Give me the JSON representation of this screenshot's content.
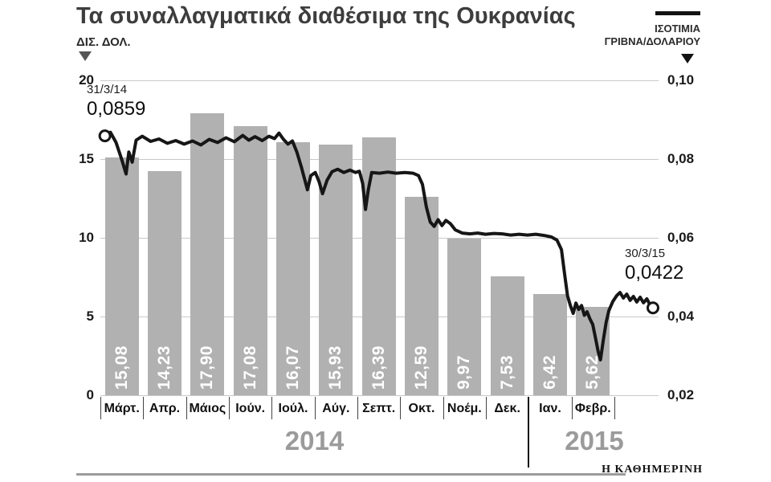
{
  "title": "Τα συναλλαγματικά διαθέσιμα της Ουκρανίας",
  "left_axis": {
    "label": "ΔΙΣ. ΔΟΛ.",
    "ticks": [
      "20",
      "15",
      "10",
      "5",
      "0"
    ]
  },
  "right_axis": {
    "ticks": [
      "0,10",
      "0,08",
      "0,06",
      "0,04",
      "0,02"
    ]
  },
  "legend": {
    "line1": "ΙΣΟΤΙΜΙΑ",
    "line2": "ΓΡΙΒΝΑ/ΔΟΛΑΡΙΟΥ"
  },
  "annotations": {
    "start_date": "31/3/14",
    "start_value": "0,0859",
    "end_date": "30/3/15",
    "end_value": "0,0422"
  },
  "footer": {
    "brand": "Η ΚΑΘΗΜΕΡΙΝΗ"
  },
  "colors": {
    "bar": "#b1b1b1",
    "line": "#161616",
    "grid": "#c9c9c9",
    "year_label": "#9b9b9b",
    "title": "#3d3d3d",
    "bar_value_text": "#ffffff"
  },
  "chart_data": {
    "type": "bar+line",
    "title": "Τα συναλλαγματικά διαθέσιμα της Ουκρανίας",
    "categories": [
      "Μάρτ.",
      "Απρ.",
      "Μάιος",
      "Ιούν.",
      "Ιούλ.",
      "Αύγ.",
      "Σεπτ.",
      "Οκτ.",
      "Νοέμ.",
      "Δεκ.",
      "Ιαν.",
      "Φεβρ."
    ],
    "year_groups": [
      {
        "label": "2014",
        "months": 10
      },
      {
        "label": "2015",
        "months": 2
      }
    ],
    "bar_series": {
      "name": "ΔΙΣ. ΔΟΛ.",
      "axis": "left",
      "ylim": [
        0,
        20
      ],
      "values": [
        15.08,
        14.23,
        17.9,
        17.08,
        16.07,
        15.93,
        16.39,
        12.59,
        9.97,
        7.53,
        6.42,
        5.62
      ],
      "labels": [
        "15,08",
        "14,23",
        "17,90",
        "17,08",
        "16,07",
        "15,93",
        "16,39",
        "12,59",
        "9,97",
        "7,53",
        "6,42",
        "5,62"
      ]
    },
    "line_series": {
      "name": "ΙΣΟΤΙΜΙΑ ΓΡΙΒΝΑ/ΔΟΛΑΡΙΟΥ",
      "axis": "right",
      "ylim": [
        0.02,
        0.1
      ],
      "start": {
        "date": "31/3/14",
        "value": 0.0859
      },
      "end": {
        "date": "30/3/15",
        "value": 0.0422
      },
      "points": [
        [
          0.008,
          0.0859
        ],
        [
          0.018,
          0.0868
        ],
        [
          0.028,
          0.0842
        ],
        [
          0.038,
          0.08
        ],
        [
          0.046,
          0.0762
        ],
        [
          0.051,
          0.0818
        ],
        [
          0.057,
          0.0792
        ],
        [
          0.064,
          0.0848
        ],
        [
          0.075,
          0.0858
        ],
        [
          0.09,
          0.0845
        ],
        [
          0.105,
          0.0851
        ],
        [
          0.12,
          0.084
        ],
        [
          0.135,
          0.0847
        ],
        [
          0.15,
          0.0838
        ],
        [
          0.165,
          0.0846
        ],
        [
          0.18,
          0.0836
        ],
        [
          0.195,
          0.085
        ],
        [
          0.21,
          0.0842
        ],
        [
          0.225,
          0.0854
        ],
        [
          0.24,
          0.0844
        ],
        [
          0.255,
          0.086
        ],
        [
          0.266,
          0.0848
        ],
        [
          0.277,
          0.0857
        ],
        [
          0.29,
          0.0847
        ],
        [
          0.302,
          0.0858
        ],
        [
          0.312,
          0.0852
        ],
        [
          0.32,
          0.0866
        ],
        [
          0.328,
          0.085
        ],
        [
          0.336,
          0.0838
        ],
        [
          0.344,
          0.0846
        ],
        [
          0.352,
          0.0818
        ],
        [
          0.36,
          0.078
        ],
        [
          0.366,
          0.0748
        ],
        [
          0.371,
          0.0722
        ],
        [
          0.377,
          0.0758
        ],
        [
          0.385,
          0.0766
        ],
        [
          0.392,
          0.0742
        ],
        [
          0.398,
          0.0712
        ],
        [
          0.406,
          0.0746
        ],
        [
          0.415,
          0.0768
        ],
        [
          0.425,
          0.0774
        ],
        [
          0.436,
          0.0766
        ],
        [
          0.447,
          0.0772
        ],
        [
          0.457,
          0.0766
        ],
        [
          0.464,
          0.0769
        ],
        [
          0.47,
          0.0738
        ],
        [
          0.475,
          0.0672
        ],
        [
          0.48,
          0.0722
        ],
        [
          0.486,
          0.0766
        ],
        [
          0.5,
          0.0764
        ],
        [
          0.515,
          0.0767
        ],
        [
          0.53,
          0.0764
        ],
        [
          0.545,
          0.0766
        ],
        [
          0.56,
          0.0764
        ],
        [
          0.57,
          0.0758
        ],
        [
          0.577,
          0.0736
        ],
        [
          0.584,
          0.0678
        ],
        [
          0.591,
          0.064
        ],
        [
          0.598,
          0.0629
        ],
        [
          0.605,
          0.0646
        ],
        [
          0.612,
          0.0631
        ],
        [
          0.619,
          0.0644
        ],
        [
          0.627,
          0.0636
        ],
        [
          0.636,
          0.062
        ],
        [
          0.648,
          0.0612
        ],
        [
          0.662,
          0.061
        ],
        [
          0.676,
          0.0612
        ],
        [
          0.69,
          0.0609
        ],
        [
          0.705,
          0.0611
        ],
        [
          0.72,
          0.061
        ],
        [
          0.735,
          0.0607
        ],
        [
          0.75,
          0.0609
        ],
        [
          0.765,
          0.0607
        ],
        [
          0.78,
          0.0609
        ],
        [
          0.795,
          0.0606
        ],
        [
          0.808,
          0.0602
        ],
        [
          0.818,
          0.0594
        ],
        [
          0.826,
          0.057
        ],
        [
          0.832,
          0.0505
        ],
        [
          0.837,
          0.0452
        ],
        [
          0.842,
          0.0428
        ],
        [
          0.847,
          0.0408
        ],
        [
          0.852,
          0.0434
        ],
        [
          0.857,
          0.0418
        ],
        [
          0.862,
          0.0428
        ],
        [
          0.867,
          0.0403
        ],
        [
          0.872,
          0.0412
        ],
        [
          0.877,
          0.0394
        ],
        [
          0.882,
          0.038
        ],
        [
          0.887,
          0.0345
        ],
        [
          0.892,
          0.031
        ],
        [
          0.896,
          0.029
        ],
        [
          0.901,
          0.034
        ],
        [
          0.906,
          0.0385
        ],
        [
          0.911,
          0.0415
        ],
        [
          0.918,
          0.0438
        ],
        [
          0.925,
          0.0453
        ],
        [
          0.931,
          0.0461
        ],
        [
          0.937,
          0.0447
        ],
        [
          0.943,
          0.0457
        ],
        [
          0.949,
          0.0441
        ],
        [
          0.955,
          0.0451
        ],
        [
          0.961,
          0.0437
        ],
        [
          0.967,
          0.0449
        ],
        [
          0.973,
          0.0435
        ],
        [
          0.979,
          0.0445
        ],
        [
          0.985,
          0.0429
        ],
        [
          0.99,
          0.0422
        ]
      ]
    },
    "left_ticks": [
      20,
      15,
      10,
      5,
      0
    ],
    "right_ticks": [
      0.1,
      0.08,
      0.06,
      0.04,
      0.02
    ],
    "grid": true,
    "legend_position": "top-right"
  }
}
